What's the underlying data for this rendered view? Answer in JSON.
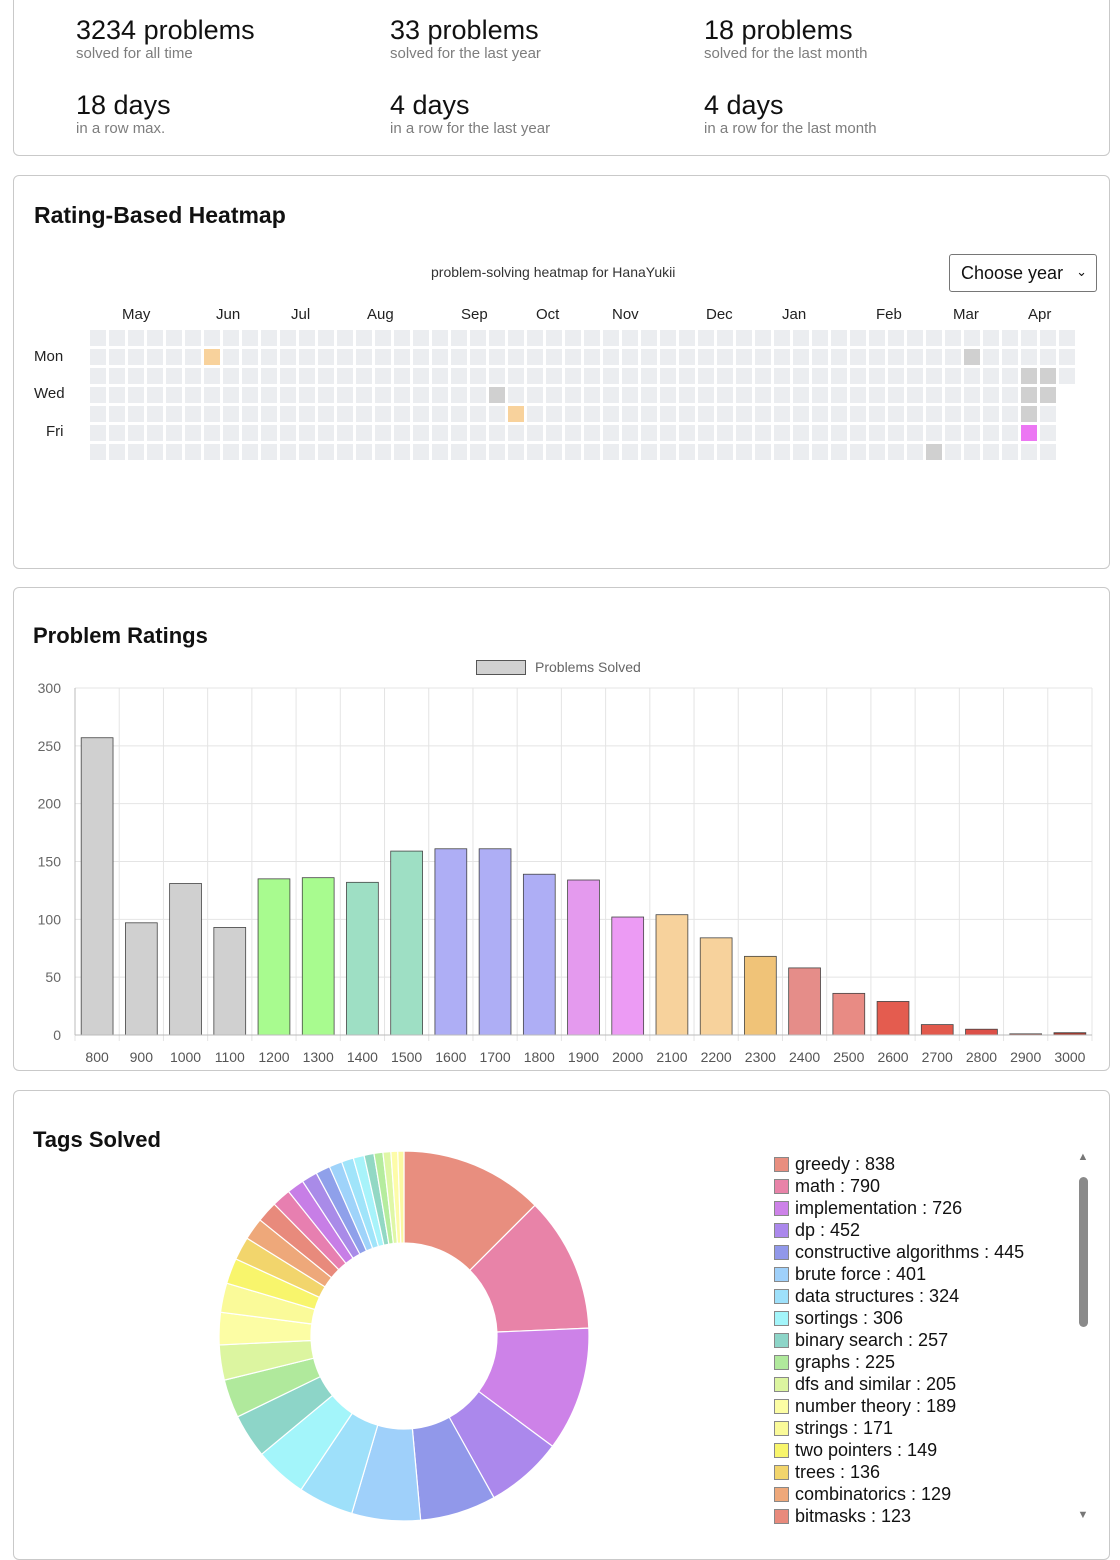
{
  "stats": [
    {
      "value": "3234 problems",
      "caption": "solved for all time"
    },
    {
      "value": "33 problems",
      "caption": "solved for the last year"
    },
    {
      "value": "18 problems",
      "caption": "solved for the last month"
    },
    {
      "value": "18 days",
      "caption": "in a row max."
    },
    {
      "value": "4 days",
      "caption": "in a row for the last year"
    },
    {
      "value": "4 days",
      "caption": "in a row for the last month"
    }
  ],
  "heatmap": {
    "title": "Rating-Based Heatmap",
    "caption": "problem-solving heatmap for HanaYukii",
    "year_select": "Choose year",
    "months": [
      "May",
      "Jun",
      "Jul",
      "Aug",
      "Sep",
      "Oct",
      "Nov",
      "Dec",
      "Jan",
      "Feb",
      "Mar",
      "Apr"
    ],
    "day_labels": [
      "Mon",
      "Wed",
      "Fri"
    ],
    "colors": {
      "empty": "#ebedf0",
      "gray": "#d0d0d0",
      "orange": "#f8d29c",
      "violet": "#ec77f3"
    },
    "filled": [
      {
        "week": 6,
        "day": 1,
        "color": "orange"
      },
      {
        "week": 21,
        "day": 3,
        "color": "gray"
      },
      {
        "week": 22,
        "day": 4,
        "color": "orange"
      },
      {
        "week": 44,
        "day": 6,
        "color": "gray"
      },
      {
        "week": 46,
        "day": 1,
        "color": "gray"
      },
      {
        "week": 49,
        "day": 2,
        "color": "gray"
      },
      {
        "week": 49,
        "day": 3,
        "color": "gray"
      },
      {
        "week": 49,
        "day": 4,
        "color": "gray"
      },
      {
        "week": 49,
        "day": 5,
        "color": "violet"
      },
      {
        "week": 50,
        "day": 2,
        "color": "gray"
      },
      {
        "week": 50,
        "day": 3,
        "color": "gray"
      }
    ]
  },
  "ratings": {
    "title": "Problem Ratings",
    "legend": "Problems Solved"
  },
  "chart_data": {
    "type": "bar",
    "categories": [
      "800",
      "900",
      "1000",
      "1100",
      "1200",
      "1300",
      "1400",
      "1500",
      "1600",
      "1700",
      "1800",
      "1900",
      "2000",
      "2100",
      "2200",
      "2300",
      "2400",
      "2500",
      "2600",
      "2700",
      "2800",
      "2900",
      "3000"
    ],
    "series": [
      {
        "name": "Problems Solved",
        "values": [
          257,
          97,
          131,
          93,
          135,
          136,
          132,
          159,
          161,
          161,
          139,
          134,
          102,
          104,
          84,
          68,
          58,
          36,
          29,
          9,
          5,
          1,
          2
        ]
      }
    ],
    "colors": [
      "#d0d0d0",
      "#d0d0d0",
      "#d0d0d0",
      "#d0d0d0",
      "#a8fb8f",
      "#a8fb8f",
      "#9edfc4",
      "#9edfc4",
      "#aeaef5",
      "#aeaef5",
      "#aeaef5",
      "#e49aee",
      "#ec9bf4",
      "#f7d29c",
      "#f7d29c",
      "#f0c378",
      "#e58d89",
      "#e88b84",
      "#e45c4f",
      "#e2594c",
      "#dc5048",
      "#b84234",
      "#a23a2e"
    ],
    "ylim": [
      0,
      300
    ],
    "yticks": [
      "0",
      "50",
      "100",
      "150",
      "200",
      "250",
      "300"
    ],
    "grid": true,
    "legend_position": "top"
  },
  "tags": {
    "title": "Tags Solved",
    "items": [
      {
        "label": "greedy : 838",
        "color": "#e88e7f"
      },
      {
        "label": "math : 790",
        "color": "#e883a8"
      },
      {
        "label": "implementation : 726",
        "color": "#cd82e8"
      },
      {
        "label": "dp : 452",
        "color": "#ab88ec"
      },
      {
        "label": "constructive algorithms : 445",
        "color": "#9198ea"
      },
      {
        "label": "brute force : 401",
        "color": "#9fd0fa"
      },
      {
        "label": "data structures : 324",
        "color": "#9ee0fa"
      },
      {
        "label": "sortings : 306",
        "color": "#a3f5fa"
      },
      {
        "label": "binary search : 257",
        "color": "#8dd5c8"
      },
      {
        "label": "graphs : 225",
        "color": "#b0e99c"
      },
      {
        "label": "dfs and similar : 205",
        "color": "#dcf5a0"
      },
      {
        "label": "number theory : 189",
        "color": "#fcfda4"
      },
      {
        "label": "strings : 171",
        "color": "#fafa99"
      },
      {
        "label": "two pointers : 149",
        "color": "#f8f56c"
      },
      {
        "label": "trees : 136",
        "color": "#f2d56c"
      },
      {
        "label": "combinatorics : 129",
        "color": "#eea87a"
      },
      {
        "label": "bitmasks : 123",
        "color": "#e88a7c"
      }
    ],
    "extra_slice_colors": [
      "#e77fb0",
      "#c77ee6",
      "#a98be8",
      "#8fa0ea",
      "#9fd3fa",
      "#a0e4fa",
      "#a8f3fa",
      "#92d8c4",
      "#b5ec9e",
      "#dff7a6",
      "#fdfca9",
      "#fbf9a2"
    ]
  }
}
